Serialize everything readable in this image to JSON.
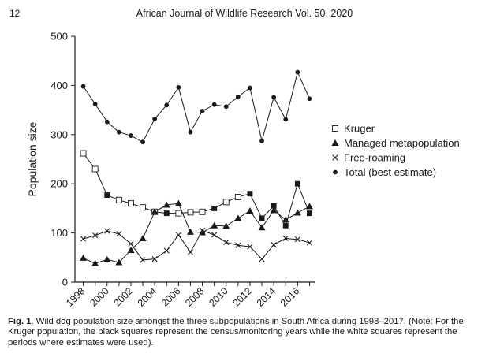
{
  "header": {
    "page_number": "12",
    "journal": "African Journal of Wildlife Research Vol. 50, 2020"
  },
  "caption": {
    "label": "Fig. 1",
    "text": ". Wild dog population size amongst the three subpopulations in South Africa during 1998–2017. (Note: For the Kruger population, the black squares represent the census/monitoring years while the white squares represent the periods where estimates were used)."
  },
  "chart_data": {
    "type": "line",
    "title": "",
    "xlabel": "",
    "ylabel": "Population size",
    "xlim": [
      1997.3,
      2017.5
    ],
    "ylim": [
      0,
      500
    ],
    "x_ticks": [
      1998,
      2000,
      2002,
      2004,
      2006,
      2008,
      2010,
      2012,
      2014,
      2016
    ],
    "y_ticks": [
      0,
      100,
      200,
      300,
      400,
      500
    ],
    "grid": false,
    "legend_position": "right",
    "x": [
      1998,
      1999,
      2000,
      2001,
      2002,
      2003,
      2004,
      2005,
      2006,
      2007,
      2008,
      2009,
      2010,
      2011,
      2012,
      2013,
      2014,
      2015,
      2016,
      2017
    ],
    "series": [
      {
        "name": "Kruger",
        "marker": "square",
        "values": [
          262,
          230,
          177,
          167,
          160,
          152,
          143,
          140,
          140,
          142,
          143,
          150,
          163,
          173,
          180,
          130,
          155,
          115,
          200,
          140
        ],
        "filled": [
          false,
          false,
          true,
          false,
          false,
          false,
          false,
          true,
          false,
          false,
          false,
          true,
          false,
          false,
          true,
          true,
          true,
          true,
          true,
          true
        ]
      },
      {
        "name": "Managed metapopulation",
        "marker": "triangle",
        "values": [
          49,
          38,
          46,
          40,
          65,
          89,
          143,
          157,
          160,
          102,
          101,
          115,
          114,
          130,
          145,
          111,
          146,
          127,
          141,
          154
        ]
      },
      {
        "name": "Free-roaming",
        "marker": "cross",
        "values": [
          88,
          95,
          104,
          98,
          78,
          45,
          47,
          64,
          96,
          61,
          105,
          96,
          81,
          75,
          72,
          47,
          76,
          89,
          87,
          80
        ]
      },
      {
        "name": "Total (best estimate)",
        "marker": "circle",
        "values": [
          398,
          362,
          326,
          305,
          298,
          285,
          332,
          360,
          396,
          305,
          348,
          361,
          357,
          377,
          395,
          287,
          376,
          331,
          427,
          373
        ]
      }
    ]
  }
}
